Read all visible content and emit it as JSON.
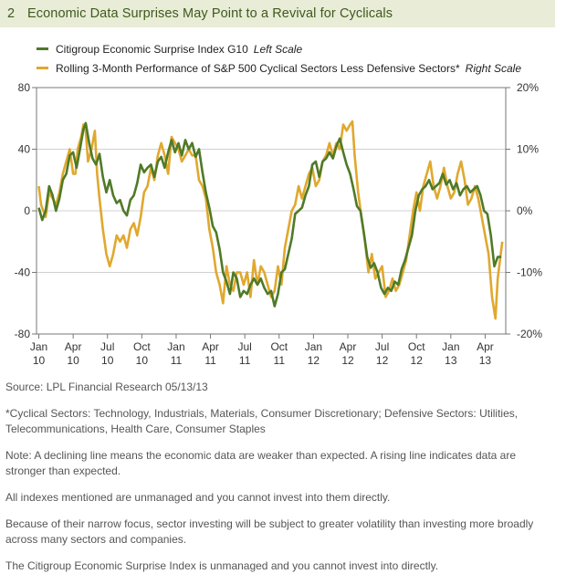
{
  "header": {
    "number": "2",
    "title": "Economic Data Surprises May Point to a Revival for Cyclicals"
  },
  "chart_data": {
    "type": "line",
    "title": "Economic Data Surprises May Point to a Revival for Cyclicals",
    "colors": {
      "green": "#4f7a28",
      "gold": "#e0a82e",
      "header_bg": "#e9ecd6",
      "title": "#3d5a1e"
    },
    "left_axis": {
      "min": -80,
      "max": 80,
      "ticks": [
        80,
        40,
        0,
        -40,
        -80
      ],
      "labels": [
        "80",
        "40",
        "0",
        "-40",
        "-80"
      ]
    },
    "right_axis": {
      "min": -20,
      "max": 20,
      "ticks": [
        20,
        10,
        0,
        -10,
        -20
      ],
      "labels": [
        "20%",
        "10%",
        "0%",
        "-10%",
        "-20%"
      ]
    },
    "x_ticks": [
      {
        "month": "Jan",
        "year": "10",
        "t": 0
      },
      {
        "month": "Apr",
        "year": "10",
        "t": 3
      },
      {
        "month": "Jul",
        "year": "10",
        "t": 6
      },
      {
        "month": "Oct",
        "year": "10",
        "t": 9
      },
      {
        "month": "Jan",
        "year": "11",
        "t": 12
      },
      {
        "month": "Apr",
        "year": "11",
        "t": 15
      },
      {
        "month": "Jul",
        "year": "11",
        "t": 18
      },
      {
        "month": "Oct",
        "year": "11",
        "t": 21
      },
      {
        "month": "Jan",
        "year": "12",
        "t": 24
      },
      {
        "month": "Apr",
        "year": "12",
        "t": 27
      },
      {
        "month": "Jul",
        "year": "12",
        "t": 30
      },
      {
        "month": "Oct",
        "year": "12",
        "t": 33
      },
      {
        "month": "Jan",
        "year": "13",
        "t": 36
      },
      {
        "month": "Apr",
        "year": "13",
        "t": 39
      }
    ],
    "x_range": [
      -0.2,
      40.8
    ],
    "series": [
      {
        "name": "Citigroup Economic Surprise Index G10",
        "scale": "Left Scale",
        "axis": "left",
        "color": "#4f7a28",
        "points": [
          [
            0.0,
            2
          ],
          [
            0.3,
            -6
          ],
          [
            0.6,
            0
          ],
          [
            0.9,
            16
          ],
          [
            1.2,
            10
          ],
          [
            1.5,
            0
          ],
          [
            1.8,
            8
          ],
          [
            2.1,
            20
          ],
          [
            2.4,
            24
          ],
          [
            2.7,
            36
          ],
          [
            3.0,
            38
          ],
          [
            3.3,
            28
          ],
          [
            3.6,
            40
          ],
          [
            3.9,
            53
          ],
          [
            4.1,
            57
          ],
          [
            4.4,
            44
          ],
          [
            4.7,
            34
          ],
          [
            5.0,
            30
          ],
          [
            5.3,
            37
          ],
          [
            5.6,
            22
          ],
          [
            5.9,
            12
          ],
          [
            6.2,
            20
          ],
          [
            6.5,
            10
          ],
          [
            6.8,
            5
          ],
          [
            7.1,
            7
          ],
          [
            7.4,
            0
          ],
          [
            7.7,
            -3
          ],
          [
            8.0,
            7
          ],
          [
            8.3,
            10
          ],
          [
            8.6,
            18
          ],
          [
            8.9,
            30
          ],
          [
            9.2,
            25
          ],
          [
            9.5,
            28
          ],
          [
            9.8,
            30
          ],
          [
            10.1,
            22
          ],
          [
            10.4,
            32
          ],
          [
            10.7,
            35
          ],
          [
            11.0,
            28
          ],
          [
            11.3,
            38
          ],
          [
            11.6,
            46
          ],
          [
            11.9,
            38
          ],
          [
            12.2,
            44
          ],
          [
            12.5,
            36
          ],
          [
            12.8,
            46
          ],
          [
            13.1,
            40
          ],
          [
            13.4,
            44
          ],
          [
            13.7,
            35
          ],
          [
            14.0,
            40
          ],
          [
            14.3,
            25
          ],
          [
            14.6,
            12
          ],
          [
            14.9,
            2
          ],
          [
            15.2,
            -10
          ],
          [
            15.5,
            -14
          ],
          [
            15.8,
            -25
          ],
          [
            16.1,
            -40
          ],
          [
            16.4,
            -46
          ],
          [
            16.7,
            -54
          ],
          [
            17.0,
            -40
          ],
          [
            17.3,
            -44
          ],
          [
            17.6,
            -56
          ],
          [
            17.9,
            -52
          ],
          [
            18.2,
            -54
          ],
          [
            18.5,
            -48
          ],
          [
            18.8,
            -44
          ],
          [
            19.1,
            -48
          ],
          [
            19.4,
            -44
          ],
          [
            19.7,
            -50
          ],
          [
            20.0,
            -54
          ],
          [
            20.3,
            -52
          ],
          [
            20.6,
            -62
          ],
          [
            20.9,
            -54
          ],
          [
            21.2,
            -40
          ],
          [
            21.5,
            -38
          ],
          [
            21.8,
            -28
          ],
          [
            22.1,
            -18
          ],
          [
            22.4,
            -2
          ],
          [
            22.7,
            0
          ],
          [
            23.0,
            2
          ],
          [
            23.3,
            10
          ],
          [
            23.6,
            16
          ],
          [
            23.9,
            30
          ],
          [
            24.2,
            32
          ],
          [
            24.5,
            22
          ],
          [
            24.8,
            32
          ],
          [
            25.1,
            34
          ],
          [
            25.4,
            38
          ],
          [
            25.7,
            34
          ],
          [
            26.0,
            42
          ],
          [
            26.3,
            47
          ],
          [
            26.6,
            38
          ],
          [
            26.9,
            30
          ],
          [
            27.2,
            24
          ],
          [
            27.5,
            14
          ],
          [
            27.8,
            3
          ],
          [
            28.1,
            0
          ],
          [
            28.4,
            -14
          ],
          [
            28.7,
            -30
          ],
          [
            29.0,
            -37
          ],
          [
            29.3,
            -34
          ],
          [
            29.6,
            -40
          ],
          [
            29.9,
            -50
          ],
          [
            30.2,
            -54
          ],
          [
            30.5,
            -50
          ],
          [
            30.8,
            -52
          ],
          [
            31.1,
            -46
          ],
          [
            31.4,
            -48
          ],
          [
            31.7,
            -38
          ],
          [
            32.0,
            -32
          ],
          [
            32.3,
            -24
          ],
          [
            32.6,
            -16
          ],
          [
            32.9,
            0
          ],
          [
            33.2,
            10
          ],
          [
            33.5,
            14
          ],
          [
            33.8,
            16
          ],
          [
            34.1,
            20
          ],
          [
            34.4,
            14
          ],
          [
            34.7,
            16
          ],
          [
            35.0,
            18
          ],
          [
            35.3,
            24
          ],
          [
            35.6,
            17
          ],
          [
            35.9,
            20
          ],
          [
            36.2,
            14
          ],
          [
            36.5,
            18
          ],
          [
            36.8,
            10
          ],
          [
            37.1,
            14
          ],
          [
            37.4,
            16
          ],
          [
            37.7,
            12
          ],
          [
            38.0,
            14
          ],
          [
            38.3,
            16
          ],
          [
            38.6,
            10
          ],
          [
            38.9,
            0
          ],
          [
            39.2,
            -2
          ],
          [
            39.5,
            -16
          ],
          [
            39.8,
            -36
          ],
          [
            40.1,
            -30
          ],
          [
            40.4,
            -30
          ]
        ]
      },
      {
        "name": "Rolling 3-Month Performance of S&P 500 Cyclical Sectors Less Defensive Sectors*",
        "scale": "Right Scale",
        "axis": "right",
        "color": "#e0a82e",
        "points": [
          [
            0.0,
            4
          ],
          [
            0.2,
            1
          ],
          [
            0.4,
            0
          ],
          [
            0.6,
            -1
          ],
          [
            0.9,
            3
          ],
          [
            1.2,
            2
          ],
          [
            1.5,
            1
          ],
          [
            1.8,
            3
          ],
          [
            2.1,
            6
          ],
          [
            2.4,
            8
          ],
          [
            2.7,
            10
          ],
          [
            3.0,
            6
          ],
          [
            3.2,
            6
          ],
          [
            3.4,
            10
          ],
          [
            3.7,
            12
          ],
          [
            3.9,
            14
          ],
          [
            4.1,
            13
          ],
          [
            4.3,
            8
          ],
          [
            4.6,
            10
          ],
          [
            4.9,
            13
          ],
          [
            5.1,
            6
          ],
          [
            5.3,
            2
          ],
          [
            5.6,
            -3
          ],
          [
            5.9,
            -7
          ],
          [
            6.2,
            -9
          ],
          [
            6.5,
            -7
          ],
          [
            6.8,
            -4
          ],
          [
            7.1,
            -5
          ],
          [
            7.4,
            -4
          ],
          [
            7.7,
            -6
          ],
          [
            8.0,
            -3
          ],
          [
            8.3,
            -2
          ],
          [
            8.6,
            -4
          ],
          [
            8.9,
            -1
          ],
          [
            9.2,
            3
          ],
          [
            9.5,
            4
          ],
          [
            9.8,
            7
          ],
          [
            10.1,
            5
          ],
          [
            10.4,
            9
          ],
          [
            10.7,
            11
          ],
          [
            11.0,
            9
          ],
          [
            11.3,
            6
          ],
          [
            11.6,
            12
          ],
          [
            11.9,
            11
          ],
          [
            12.2,
            10
          ],
          [
            12.5,
            8
          ],
          [
            12.8,
            9
          ],
          [
            13.1,
            10
          ],
          [
            13.4,
            9
          ],
          [
            13.7,
            9
          ],
          [
            14.0,
            5
          ],
          [
            14.3,
            4
          ],
          [
            14.6,
            2
          ],
          [
            14.9,
            -3
          ],
          [
            15.2,
            -6
          ],
          [
            15.5,
            -10
          ],
          [
            15.8,
            -12
          ],
          [
            16.1,
            -15
          ],
          [
            16.4,
            -9
          ],
          [
            16.7,
            -12
          ],
          [
            17.0,
            -13
          ],
          [
            17.3,
            -10
          ],
          [
            17.6,
            -10
          ],
          [
            17.9,
            -12
          ],
          [
            18.2,
            -10
          ],
          [
            18.5,
            -14
          ],
          [
            18.8,
            -8
          ],
          [
            19.1,
            -12
          ],
          [
            19.4,
            -9
          ],
          [
            19.7,
            -10
          ],
          [
            20.0,
            -12
          ],
          [
            20.3,
            -14
          ],
          [
            20.6,
            -13
          ],
          [
            20.9,
            -9
          ],
          [
            21.2,
            -12
          ],
          [
            21.5,
            -6
          ],
          [
            21.8,
            -3
          ],
          [
            22.1,
            0
          ],
          [
            22.4,
            1
          ],
          [
            22.7,
            4
          ],
          [
            23.0,
            2
          ],
          [
            23.3,
            4
          ],
          [
            23.6,
            6
          ],
          [
            23.9,
            7
          ],
          [
            24.2,
            4
          ],
          [
            24.5,
            5
          ],
          [
            24.8,
            8
          ],
          [
            25.1,
            9
          ],
          [
            25.4,
            11
          ],
          [
            25.7,
            9
          ],
          [
            26.0,
            11
          ],
          [
            26.3,
            10
          ],
          [
            26.6,
            14
          ],
          [
            26.9,
            13
          ],
          [
            27.2,
            14
          ],
          [
            27.4,
            14.5
          ],
          [
            27.6,
            9
          ],
          [
            27.9,
            3
          ],
          [
            28.2,
            -1
          ],
          [
            28.5,
            -5
          ],
          [
            28.8,
            -10
          ],
          [
            29.1,
            -7
          ],
          [
            29.4,
            -11
          ],
          [
            29.7,
            -10
          ],
          [
            30.0,
            -9
          ],
          [
            30.3,
            -14
          ],
          [
            30.6,
            -13
          ],
          [
            30.9,
            -11
          ],
          [
            31.2,
            -13
          ],
          [
            31.5,
            -12
          ],
          [
            31.8,
            -10
          ],
          [
            32.1,
            -8
          ],
          [
            32.4,
            -4
          ],
          [
            32.7,
            0
          ],
          [
            33.0,
            3
          ],
          [
            33.3,
            0
          ],
          [
            33.6,
            4
          ],
          [
            33.9,
            6
          ],
          [
            34.2,
            8
          ],
          [
            34.5,
            4
          ],
          [
            34.8,
            2
          ],
          [
            35.1,
            4
          ],
          [
            35.4,
            7
          ],
          [
            35.7,
            4
          ],
          [
            36.0,
            2
          ],
          [
            36.3,
            3
          ],
          [
            36.6,
            6
          ],
          [
            36.9,
            8
          ],
          [
            37.2,
            5
          ],
          [
            37.5,
            1
          ],
          [
            37.8,
            2
          ],
          [
            38.1,
            4
          ],
          [
            38.4,
            2
          ],
          [
            38.7,
            -1
          ],
          [
            39.0,
            -4
          ],
          [
            39.3,
            -7
          ],
          [
            39.6,
            -14
          ],
          [
            39.9,
            -17.5
          ],
          [
            40.1,
            -11
          ],
          [
            40.3,
            -8
          ],
          [
            40.5,
            -5
          ]
        ]
      }
    ]
  },
  "notes": {
    "source": "Source: LPL Financial Research   05/13/13",
    "footnote": "*Cyclical Sectors: Technology, Industrials, Materials, Consumer Discretionary;  Defensive Sectors: Utilities, Telecommunications, Health Care, Consumer Staples",
    "note": "Note: A declining line means the economic data are weaker than expected. A rising line indicates data are stronger than expected.",
    "indexes": "All indexes mentioned are unmanaged and you cannot invest into them directly.",
    "focus": "Because of their narrow focus, sector investing will be subject to greater volatility than investing more broadly across many sectors and companies.",
    "citigroup": "The Citigroup Economic Surprise Index is unmanaged and you cannot invest into directly."
  }
}
